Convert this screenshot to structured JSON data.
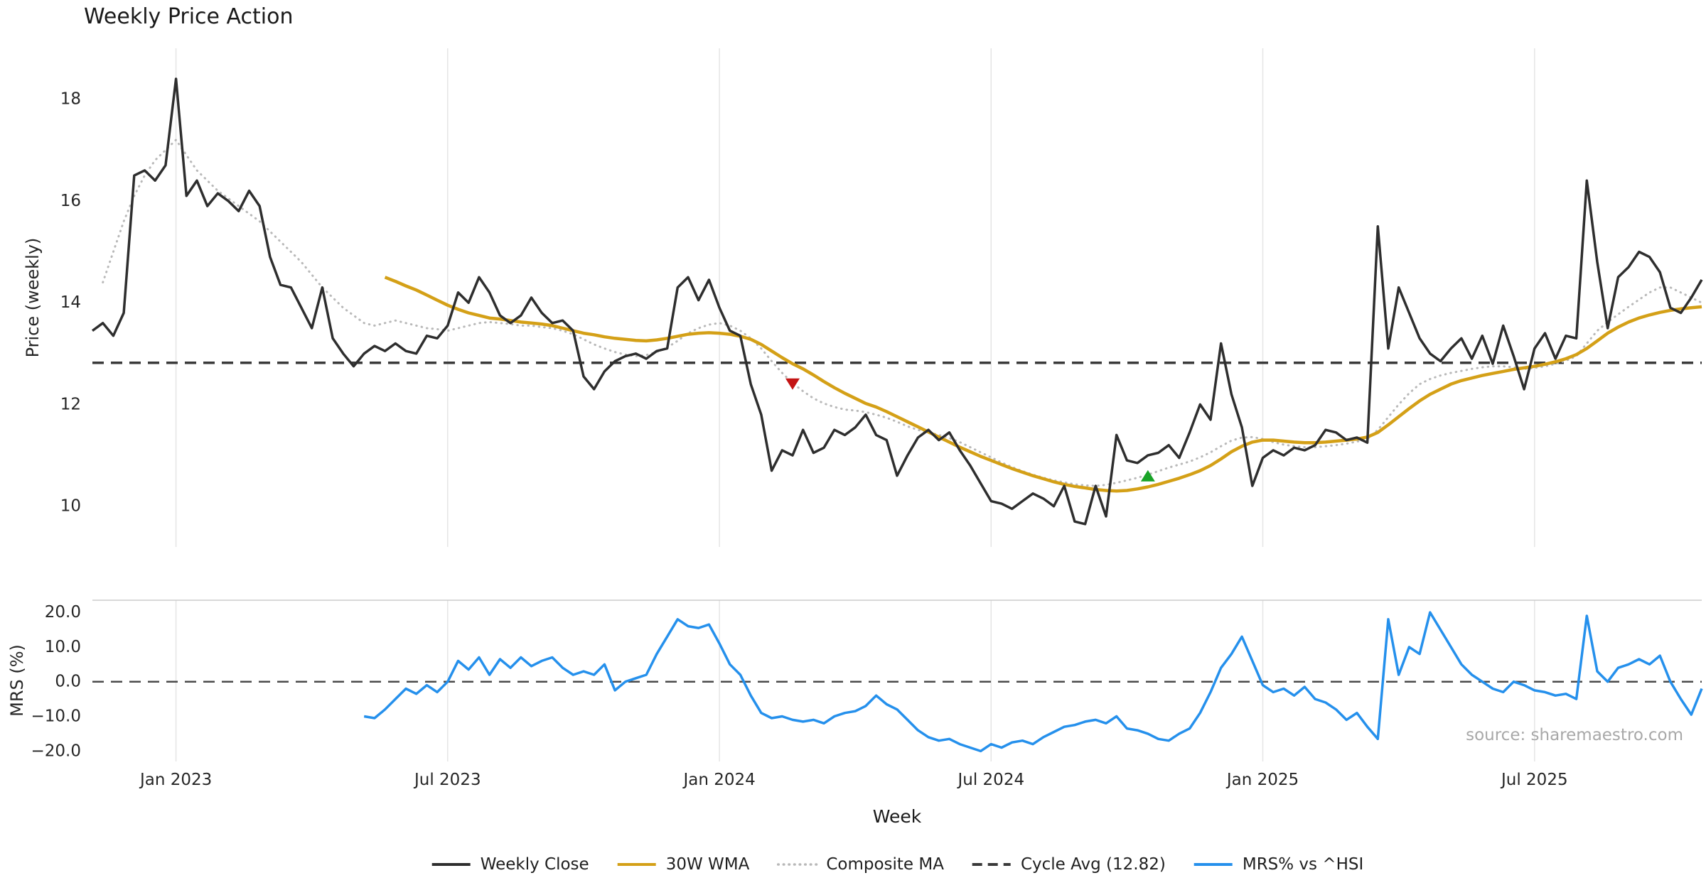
{
  "title": "Weekly Price Action",
  "xlabel": "Week",
  "source": "source: sharemaestro.com",
  "colors": {
    "weekly_close": "#2e2e2e",
    "wma_30w": "#d4a017",
    "composite_ma": "#b9b9b9",
    "cycle_avg": "#3a3a3a",
    "mrs": "#2590ec",
    "marker_sell": "#c41414",
    "marker_buy": "#18a327",
    "grid": "#e5e5e5",
    "spine": "#cccccc",
    "text": "#262626",
    "muted_text": "#a8a8a8"
  },
  "legend": [
    {
      "label": "Weekly Close",
      "style": "solid",
      "color": "#2e2e2e"
    },
    {
      "label": "30W WMA",
      "style": "solid",
      "color": "#d4a017"
    },
    {
      "label": "Composite MA",
      "style": "dotted",
      "color": "#b9b9b9"
    },
    {
      "label": "Cycle Avg (12.82)",
      "style": "dashed",
      "color": "#3a3a3a"
    },
    {
      "label": "MRS% vs ^HSI",
      "style": "solid",
      "color": "#2590ec"
    }
  ],
  "chart_data": {
    "type": "line",
    "title": "Weekly Price Action",
    "xlabel": "Week",
    "x_unit": "week-index",
    "x_count": 155,
    "xticks": [
      {
        "index": 8,
        "label": "Jan 2023"
      },
      {
        "index": 34,
        "label": "Jul 2023"
      },
      {
        "index": 60,
        "label": "Jan 2024"
      },
      {
        "index": 86,
        "label": "Jul 2024"
      },
      {
        "index": 112,
        "label": "Jan 2025"
      },
      {
        "index": 138,
        "label": "Jul 2025"
      }
    ],
    "panels": [
      {
        "name": "price",
        "ylabel": "Price (weekly)",
        "ylim": [
          9.2,
          19.0
        ],
        "yticks": [
          {
            "value": 18,
            "label": "18"
          },
          {
            "value": 16,
            "label": "16"
          },
          {
            "value": 14,
            "label": "14"
          },
          {
            "value": 12,
            "label": "12"
          },
          {
            "value": 10,
            "label": "10"
          }
        ],
        "hlines": [
          {
            "name": "Cycle Avg",
            "value": 12.82,
            "style": "dashed",
            "color": "#3a3a3a",
            "width": 3.5
          }
        ],
        "series": [
          {
            "name": "Composite MA",
            "color": "#b9b9b9",
            "style": "dotted",
            "width": 3,
            "start_index": 1,
            "values": [
              14.4,
              15.0,
              15.6,
              16.1,
              16.5,
              16.8,
              17.0,
              17.2,
              16.9,
              16.6,
              16.4,
              16.2,
              16.05,
              15.9,
              15.75,
              15.6,
              15.4,
              15.2,
              15.0,
              14.8,
              14.55,
              14.3,
              14.1,
              13.9,
              13.75,
              13.6,
              13.55,
              13.6,
              13.65,
              13.6,
              13.55,
              13.5,
              13.48,
              13.45,
              13.5,
              13.55,
              13.6,
              13.62,
              13.6,
              13.58,
              13.55,
              13.55,
              13.52,
              13.5,
              13.45,
              13.38,
              13.28,
              13.18,
              13.1,
              13.03,
              12.98,
              12.95,
              12.97,
              13.03,
              13.12,
              13.25,
              13.4,
              13.5,
              13.57,
              13.6,
              13.55,
              13.45,
              13.3,
              13.1,
              12.85,
              12.62,
              12.42,
              12.26,
              12.12,
              12.02,
              11.95,
              11.9,
              11.88,
              11.85,
              11.8,
              11.74,
              11.66,
              11.57,
              11.5,
              11.45,
              11.4,
              11.34,
              11.26,
              11.16,
              11.06,
              10.96,
              10.86,
              10.77,
              10.69,
              10.62,
              10.56,
              10.51,
              10.47,
              10.43,
              10.41,
              10.4,
              10.42,
              10.46,
              10.51,
              10.56,
              10.62,
              10.69,
              10.76,
              10.82,
              10.88,
              10.96,
              11.06,
              11.18,
              11.29,
              11.35,
              11.36,
              11.32,
              11.26,
              11.21,
              11.18,
              11.16,
              11.16,
              11.18,
              11.2,
              11.23,
              11.27,
              11.32,
              11.5,
              11.75,
              12.0,
              12.22,
              12.4,
              12.5,
              12.57,
              12.62,
              12.66,
              12.7,
              12.73,
              12.75,
              12.75,
              12.73,
              12.7,
              12.72,
              12.75,
              12.8,
              12.86,
              12.95,
              13.2,
              13.45,
              13.62,
              13.77,
              13.92,
              14.06,
              14.2,
              14.3,
              14.3,
              14.2,
              14.1,
              14.0
            ]
          },
          {
            "name": "30W WMA",
            "color": "#d4a017",
            "style": "solid",
            "width": 4.5,
            "start_index": 28,
            "values": [
              14.5,
              14.42,
              14.33,
              14.25,
              14.15,
              14.05,
              13.95,
              13.87,
              13.8,
              13.75,
              13.7,
              13.68,
              13.65,
              13.62,
              13.6,
              13.58,
              13.55,
              13.5,
              13.45,
              13.4,
              13.37,
              13.33,
              13.3,
              13.28,
              13.26,
              13.25,
              13.27,
              13.3,
              13.34,
              13.38,
              13.4,
              13.41,
              13.4,
              13.38,
              13.34,
              13.28,
              13.18,
              13.05,
              12.92,
              12.8,
              12.7,
              12.58,
              12.45,
              12.33,
              12.22,
              12.12,
              12.02,
              11.95,
              11.86,
              11.76,
              11.66,
              11.56,
              11.46,
              11.36,
              11.26,
              11.16,
              11.07,
              10.98,
              10.9,
              10.82,
              10.74,
              10.67,
              10.6,
              10.54,
              10.48,
              10.43,
              10.39,
              10.36,
              10.33,
              10.31,
              10.3,
              10.31,
              10.34,
              10.38,
              10.43,
              10.49,
              10.55,
              10.62,
              10.7,
              10.8,
              10.93,
              11.07,
              11.18,
              11.26,
              11.3,
              11.3,
              11.28,
              11.26,
              11.25,
              11.25,
              11.26,
              11.28,
              11.3,
              11.32,
              11.36,
              11.45,
              11.6,
              11.76,
              11.92,
              12.07,
              12.2,
              12.3,
              12.4,
              12.47,
              12.52,
              12.57,
              12.61,
              12.65,
              12.69,
              12.72,
              12.75,
              12.79,
              12.84,
              12.9,
              12.98,
              13.1,
              13.25,
              13.4,
              13.52,
              13.62,
              13.7,
              13.76,
              13.81,
              13.85,
              13.88,
              13.9,
              13.92
            ]
          },
          {
            "name": "Weekly Close",
            "color": "#2e2e2e",
            "style": "solid",
            "width": 3.5,
            "start_index": 0,
            "values": [
              13.45,
              13.6,
              13.35,
              13.8,
              16.5,
              16.6,
              16.4,
              16.7,
              18.4,
              16.1,
              16.4,
              15.9,
              16.15,
              16.0,
              15.8,
              16.2,
              15.9,
              14.9,
              14.35,
              14.3,
              13.9,
              13.5,
              14.3,
              13.3,
              13.0,
              12.75,
              13.0,
              13.15,
              13.05,
              13.2,
              13.05,
              13.0,
              13.35,
              13.3,
              13.55,
              14.2,
              14.0,
              14.5,
              14.2,
              13.75,
              13.6,
              13.75,
              14.1,
              13.8,
              13.6,
              13.65,
              13.45,
              12.55,
              12.3,
              12.65,
              12.85,
              12.95,
              13.0,
              12.9,
              13.05,
              13.1,
              14.3,
              14.5,
              14.05,
              14.45,
              13.9,
              13.45,
              13.35,
              12.4,
              11.8,
              10.7,
              11.1,
              11.0,
              11.5,
              11.05,
              11.15,
              11.5,
              11.4,
              11.55,
              11.8,
              11.4,
              11.3,
              10.6,
              11.0,
              11.35,
              11.5,
              11.3,
              11.45,
              11.1,
              10.8,
              10.45,
              10.1,
              10.05,
              9.95,
              10.1,
              10.25,
              10.15,
              10.0,
              10.4,
              9.7,
              9.65,
              10.4,
              9.8,
              11.4,
              10.9,
              10.85,
              11.0,
              11.05,
              11.2,
              10.95,
              11.45,
              12.0,
              11.7,
              13.2,
              12.2,
              11.55,
              10.4,
              10.95,
              11.1,
              11.0,
              11.15,
              11.1,
              11.2,
              11.5,
              11.45,
              11.3,
              11.35,
              11.25,
              15.5,
              13.1,
              14.3,
              13.8,
              13.3,
              13.0,
              12.85,
              13.1,
              13.3,
              12.9,
              13.35,
              12.8,
              13.55,
              12.95,
              12.3,
              13.1,
              13.4,
              12.9,
              13.35,
              13.3,
              16.4,
              14.8,
              13.5,
              14.5,
              14.7,
              15.0,
              14.9,
              14.6,
              13.9,
              13.8,
              14.1,
              14.45
            ]
          }
        ],
        "markers": [
          {
            "name": "sell-signal",
            "shape": "triangle-down",
            "color": "#c41414",
            "index": 67,
            "value": 12.4
          },
          {
            "name": "buy-signal",
            "shape": "triangle-up",
            "color": "#18a327",
            "index": 101,
            "value": 10.6
          }
        ]
      },
      {
        "name": "mrs",
        "ylabel": "MRS (%)",
        "ylim": [
          -23,
          23.5
        ],
        "top_spine": true,
        "yticks": [
          {
            "value": 20,
            "label": "20.0"
          },
          {
            "value": 10,
            "label": "10.0"
          },
          {
            "value": 0,
            "label": "0.0"
          },
          {
            "value": -10,
            "label": "−10.0"
          },
          {
            "value": -20,
            "label": "−20.0"
          }
        ],
        "hlines": [
          {
            "name": "zero line",
            "value": 0,
            "style": "dashed",
            "color": "#4a4a4a",
            "width": 2.5
          }
        ],
        "series": [
          {
            "name": "MRS% vs ^HSI",
            "color": "#2590ec",
            "style": "solid",
            "width": 3.5,
            "start_index": 26,
            "values": [
              -10,
              -10.5,
              -8,
              -5,
              -2,
              -3.5,
              -1,
              -3,
              0,
              6,
              3.5,
              7,
              2,
              6.5,
              4,
              7,
              4.5,
              6,
              7,
              4,
              2,
              3,
              2,
              5,
              -2.5,
              0,
              1,
              2,
              8,
              13,
              18,
              16,
              15.5,
              16.5,
              11,
              5,
              2,
              -4,
              -9,
              -10.5,
              -10,
              -11,
              -11.5,
              -11,
              -12,
              -10,
              -9,
              -8.5,
              -7,
              -4,
              -6.5,
              -8,
              -11,
              -14,
              -16,
              -17,
              -16.5,
              -18,
              -19,
              -20,
              -18,
              -19,
              -17.5,
              -17,
              -18,
              -16,
              -14.5,
              -13,
              -12.5,
              -11.5,
              -11,
              -12,
              -10,
              -13.5,
              -14,
              -15,
              -16.5,
              -17,
              -15,
              -13.5,
              -9,
              -3,
              4,
              8,
              13,
              6,
              -1,
              -3,
              -2,
              -4,
              -1.5,
              -5,
              -6,
              -8,
              -11,
              -9,
              -13,
              -16.5,
              18,
              2,
              10,
              8,
              20,
              15,
              10,
              5,
              2,
              0,
              -2,
              -3,
              0,
              -1,
              -2.5,
              -3,
              -4,
              -3.5,
              -5,
              19,
              3,
              0,
              4,
              5,
              6.5,
              5,
              7.5,
              0,
              -5,
              -9.5,
              -2
            ]
          }
        ]
      }
    ]
  }
}
